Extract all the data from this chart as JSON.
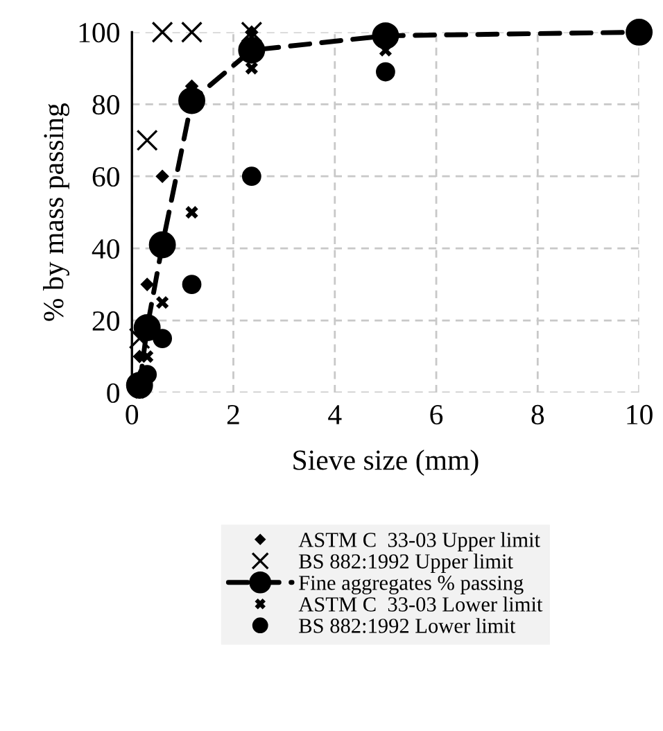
{
  "chart_data": {
    "type": "scatter",
    "xlabel": "Sieve size (mm)",
    "ylabel": "% by mass passing",
    "xlim": [
      0,
      10
    ],
    "ylim": [
      0,
      100
    ],
    "xticks": [
      0,
      2,
      4,
      6,
      8,
      10
    ],
    "yticks": [
      0,
      20,
      40,
      60,
      80,
      100
    ],
    "grid": true,
    "legend": "bottom",
    "x": [
      0.15,
      0.3,
      0.6,
      1.18,
      2.36,
      5,
      10
    ],
    "series": [
      {
        "name": "ASTM C  33-03 Upper limit",
        "marker": "diamond",
        "color": "#000000",
        "values": [
          10,
          30,
          60,
          85,
          100,
          null,
          100
        ]
      },
      {
        "name": "BS 882:1992 Upper limit",
        "marker": "cross",
        "color": "#000000",
        "values": [
          15,
          70,
          100,
          100,
          100,
          null,
          null
        ]
      },
      {
        "name": "Fine aggregates % passing",
        "type": "line",
        "marker": "circle",
        "line_style": "dashed",
        "color": "#000000",
        "values": [
          2,
          18,
          41,
          81,
          95,
          99,
          100
        ]
      },
      {
        "name": "ASTM C  33-03 Lower limit",
        "marker": "cross",
        "color": "#000000",
        "values": [
          0,
          10,
          25,
          50,
          90,
          95,
          null
        ]
      },
      {
        "name": "BS 882:1992 Lower limit",
        "marker": "circle",
        "color": "#000000",
        "values": [
          null,
          5,
          15,
          30,
          60,
          89,
          null
        ]
      }
    ]
  }
}
